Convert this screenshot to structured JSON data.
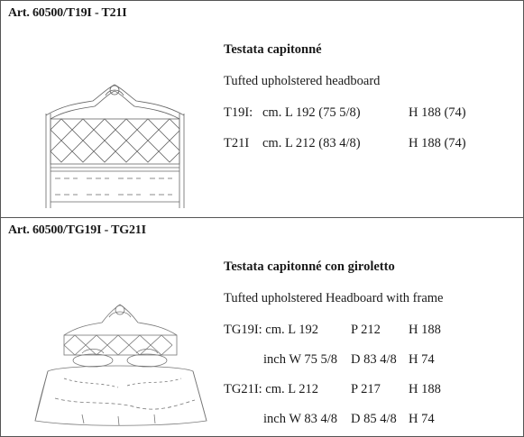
{
  "sections": [
    {
      "article": "Art. 60500/T19I - T21I",
      "name_it": "Testata capitonné",
      "name_en": "Tufted upholstered headboard",
      "rows": [
        {
          "code": "T19I:",
          "dims": "cm. L 192 (75 5/8)",
          "height": "H 188 (74)"
        },
        {
          "code": "T21I",
          "dims": "cm. L 212 (83 4/8)",
          "height": "H 188 (74)"
        }
      ]
    },
    {
      "article": "Art. 60500/TG19I - TG21I",
      "name_it": "Testata capitonné con giroletto",
      "name_en": "Tufted upholstered Headboard with frame",
      "rows": [
        {
          "c1": "TG19I: cm. L 192",
          "c2": "P 212",
          "c3": "H 188"
        },
        {
          "c1": "inch W 75 5/8",
          "c2": "D 83 4/8",
          "c3": "H 74"
        },
        {
          "c1": "TG21I: cm. L 212",
          "c2": "P  217",
          "c3": "H 188"
        },
        {
          "c1": "inch W 83 4/8",
          "c2": "D 85 4/8",
          "c3": "H 74"
        }
      ]
    }
  ]
}
